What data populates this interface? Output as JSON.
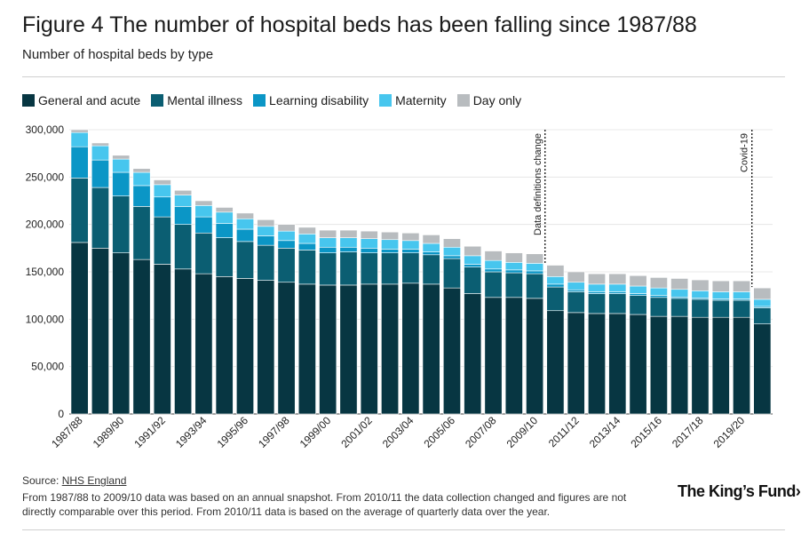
{
  "title": "Figure 4 The number of hospital beds has been falling since 1987/88",
  "subtitle": "Number of hospital beds by type",
  "source": {
    "prefix": "Source: ",
    "link": "NHS England"
  },
  "note": "From 1987/88 to 2009/10 data was based on an annual snapshot. From 2010/11 the data collection changed and figures are not directly comparable over this period. From 2010/11 data is based on the average of quarterly data over the year.",
  "logo": "The King’s Fund›",
  "colors": {
    "general_acute": "#073642",
    "mental_illness": "#0b5e72",
    "learning_disability": "#0b96c6",
    "maternity": "#47c6ee",
    "day_only": "#b8bcbf",
    "grid": "#e2e2e2"
  },
  "chart_data": {
    "type": "bar",
    "stacked": true,
    "title": "Figure 4 The number of hospital beds has been falling since 1987/88",
    "subtitle": "Number of hospital beds by type",
    "xlabel": "",
    "ylabel": "",
    "ylim": [
      0,
      300000
    ],
    "yticks": [
      0,
      50000,
      100000,
      150000,
      200000,
      250000,
      300000
    ],
    "ytick_labels": [
      "0",
      "50,000",
      "100,000",
      "150,000",
      "200,000",
      "250,000",
      "300,000"
    ],
    "grid": true,
    "legend_position": "top-left",
    "categories": [
      "1987/88",
      "1988/89",
      "1989/90",
      "1990/91",
      "1991/92",
      "1992/93",
      "1993/94",
      "1994/95",
      "1995/96",
      "1996/97",
      "1997/98",
      "1998/99",
      "1999/00",
      "2000/01",
      "2001/02",
      "2002/03",
      "2003/04",
      "2004/05",
      "2005/06",
      "2006/07",
      "2007/08",
      "2008/09",
      "2009/10",
      "2010/11",
      "2011/12",
      "2012/13",
      "2013/14",
      "2014/15",
      "2015/16",
      "2016/17",
      "2017/18",
      "2018/19",
      "2019/20",
      "2020/21"
    ],
    "xtick_labels": [
      "1987/88",
      "",
      "1989/90",
      "",
      "1991/92",
      "",
      "1993/94",
      "",
      "1995/96",
      "",
      "1997/98",
      "",
      "1999/00",
      "",
      "2001/02",
      "",
      "2003/04",
      "",
      "2005/06",
      "",
      "2007/08",
      "",
      "2009/10",
      "",
      "2011/12",
      "",
      "2013/14",
      "",
      "2015/16",
      "",
      "2017/18",
      "",
      "2019/20",
      ""
    ],
    "series": [
      {
        "name": "General and acute",
        "values": [
          181000,
          175000,
          170000,
          163000,
          158000,
          153000,
          148000,
          145000,
          143000,
          141000,
          139000,
          137000,
          136000,
          136000,
          137000,
          137000,
          138000,
          137000,
          133000,
          127000,
          123000,
          123000,
          122000,
          109000,
          107000,
          106000,
          106000,
          105000,
          103000,
          103000,
          102000,
          102000,
          102000,
          95000
        ]
      },
      {
        "name": "Mental illness",
        "values": [
          68000,
          64000,
          60000,
          56000,
          50000,
          47000,
          43000,
          41000,
          39000,
          37000,
          36000,
          36000,
          34000,
          35000,
          33000,
          33000,
          32000,
          31000,
          31000,
          28000,
          27000,
          26000,
          26000,
          25000,
          22000,
          21000,
          21000,
          20000,
          20000,
          19000,
          19000,
          18000,
          18000,
          17000
        ]
      },
      {
        "name": "Learning disability",
        "values": [
          33000,
          29000,
          25000,
          22000,
          21000,
          19000,
          17000,
          15000,
          13000,
          10000,
          8000,
          7000,
          6000,
          5000,
          5000,
          4000,
          4000,
          3000,
          3000,
          3000,
          3000,
          3000,
          3000,
          3000,
          2000,
          2000,
          2000,
          2000,
          2000,
          1500,
          1500,
          1500,
          1500,
          1500
        ]
      },
      {
        "name": "Maternity",
        "values": [
          15000,
          15000,
          14000,
          14000,
          13000,
          12000,
          12000,
          12000,
          11000,
          10000,
          10000,
          10000,
          10000,
          10000,
          10000,
          10000,
          9000,
          9000,
          9000,
          9000,
          9000,
          8000,
          8000,
          8000,
          8000,
          8000,
          8000,
          8000,
          8000,
          8000,
          7500,
          7500,
          7500,
          7500
        ]
      },
      {
        "name": "Day only",
        "values": [
          3000,
          3000,
          4000,
          4000,
          5000,
          5000,
          5000,
          5000,
          6000,
          7000,
          7000,
          7000,
          8000,
          8000,
          8000,
          8000,
          8000,
          9000,
          9000,
          10000,
          10000,
          10000,
          10000,
          12000,
          11000,
          11000,
          11000,
          11000,
          11000,
          11500,
          11500,
          11500,
          11500,
          12000
        ]
      }
    ],
    "annotations": [
      {
        "label": "Data definitions change",
        "between": [
          "2009/10",
          "2010/11"
        ]
      },
      {
        "label": "Covid-19",
        "between": [
          "2019/20",
          "2020/21"
        ]
      }
    ]
  }
}
